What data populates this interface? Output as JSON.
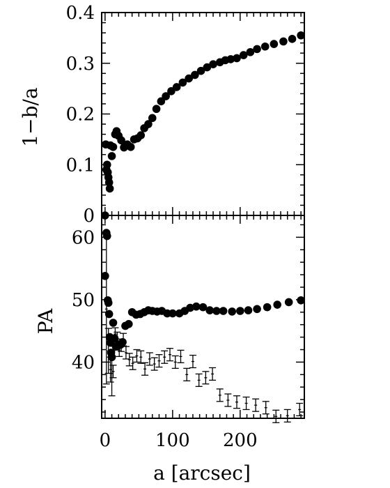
{
  "chart_data": [
    {
      "type": "scatter",
      "panel": "top",
      "ylabel": "1−b/a",
      "xlim": [
        -5,
        295
      ],
      "ylim": [
        0,
        0.4
      ],
      "yticks": [
        0,
        0.1,
        0.2,
        0.3,
        0.4
      ],
      "ytick_labels": [
        "0",
        "0.1",
        "0.2",
        "0.3",
        "0.4"
      ],
      "xticks": [
        0,
        100,
        200
      ],
      "grid": false,
      "series": [
        {
          "marker": "filled-circle",
          "color": "#000000",
          "x": [
            0,
            1,
            2,
            3,
            4,
            5,
            6,
            7,
            8,
            10,
            12,
            15,
            17,
            20,
            24,
            28,
            33,
            38,
            43,
            48,
            53,
            58,
            64,
            70,
            76,
            83,
            90,
            98,
            106,
            115,
            124,
            133,
            142,
            151,
            160,
            170,
            178,
            186,
            195,
            205,
            215,
            225,
            237,
            250,
            264,
            277,
            290
          ],
          "y": [
            0.0,
            0.14,
            0.09,
            0.1,
            0.085,
            0.075,
            0.065,
            0.053,
            0.138,
            0.117,
            0.135,
            0.16,
            0.166,
            0.157,
            0.148,
            0.134,
            0.14,
            0.135,
            0.15,
            0.152,
            0.158,
            0.172,
            0.18,
            0.192,
            0.21,
            0.225,
            0.235,
            0.245,
            0.253,
            0.262,
            0.27,
            0.277,
            0.285,
            0.292,
            0.298,
            0.302,
            0.306,
            0.308,
            0.31,
            0.316,
            0.322,
            0.328,
            0.333,
            0.338,
            0.343,
            0.348,
            0.355
          ]
        }
      ]
    },
    {
      "type": "scatter",
      "panel": "bottom",
      "ylabel": "PA",
      "xlabel": "a [arcsec]",
      "xlim": [
        -5,
        295
      ],
      "ylim": [
        31,
        63.5
      ],
      "yticks": [
        40,
        50,
        60
      ],
      "ytick_labels": [
        "40",
        "50",
        "60"
      ],
      "xticks": [
        0,
        100,
        200
      ],
      "xtick_labels": [
        "0",
        "100",
        "200"
      ],
      "grid": false,
      "series": [
        {
          "marker": "filled-circle",
          "color": "#000000",
          "x": [
            0,
            2,
            3,
            4,
            5,
            6,
            7,
            8,
            9,
            10,
            12,
            14,
            16,
            18,
            20,
            23,
            26,
            30,
            35,
            40,
            46,
            52,
            58,
            64,
            70,
            77,
            84,
            92,
            100,
            110,
            118,
            126,
            135,
            145,
            155,
            165,
            175,
            188,
            200,
            212,
            225,
            240,
            255,
            272,
            290
          ],
          "y": [
            53.8,
            60.7,
            60.2,
            49.9,
            49.5,
            47.7,
            44,
            43.1,
            41.5,
            40.8,
            46.3,
            43.8,
            42.5,
            42.5,
            42.8,
            42.8,
            43.2,
            45.8,
            46.1,
            48.0,
            47.6,
            47.7,
            48.0,
            48.3,
            48.2,
            48.1,
            48.2,
            47.8,
            47.8,
            47.8,
            48.2,
            48.7,
            48.9,
            48.8,
            48.3,
            48.2,
            48.2,
            48.1,
            48.2,
            48.3,
            48.5,
            48.8,
            49.2,
            49.6,
            49.9
          ]
        },
        {
          "marker": "errorbar",
          "color": "#000000",
          "x": [
            2,
            5,
            8,
            10,
            12,
            15,
            18,
            21,
            24,
            27,
            31,
            36,
            41,
            47,
            53,
            59,
            66,
            73,
            80,
            88,
            96,
            104,
            112,
            121,
            130,
            139,
            149,
            159,
            170,
            182,
            195,
            209,
            223,
            238,
            253,
            270,
            288
          ],
          "y": [
            48.5,
            41.8,
            38.8,
            38.2,
            38.5,
            44.5,
            43.8,
            41.9,
            42.7,
            43.6,
            41.5,
            40.4,
            39.8,
            41.0,
            40.8,
            38.9,
            40.5,
            39.7,
            40.2,
            40.8,
            41.2,
            40.0,
            40.9,
            38.0,
            40.1,
            37.1,
            37.5,
            38.1,
            34.7,
            33.9,
            33.6,
            33.4,
            33.1,
            32.7,
            31.3,
            31.4,
            32.4
          ],
          "err": [
            12.0,
            3.6,
            2.0,
            3.6,
            1.0,
            1.0,
            1.0,
            1.0,
            1.0,
            1.0,
            1.0,
            1.0,
            1.0,
            1.0,
            1.0,
            1.0,
            1.0,
            1.0,
            1.0,
            1.0,
            1.0,
            1.0,
            1.0,
            1.0,
            1.0,
            1.0,
            1.0,
            1.0,
            1.0,
            1.0,
            1.0,
            1.0,
            1.0,
            1.0,
            1.0,
            1.0,
            1.0
          ]
        }
      ]
    }
  ]
}
